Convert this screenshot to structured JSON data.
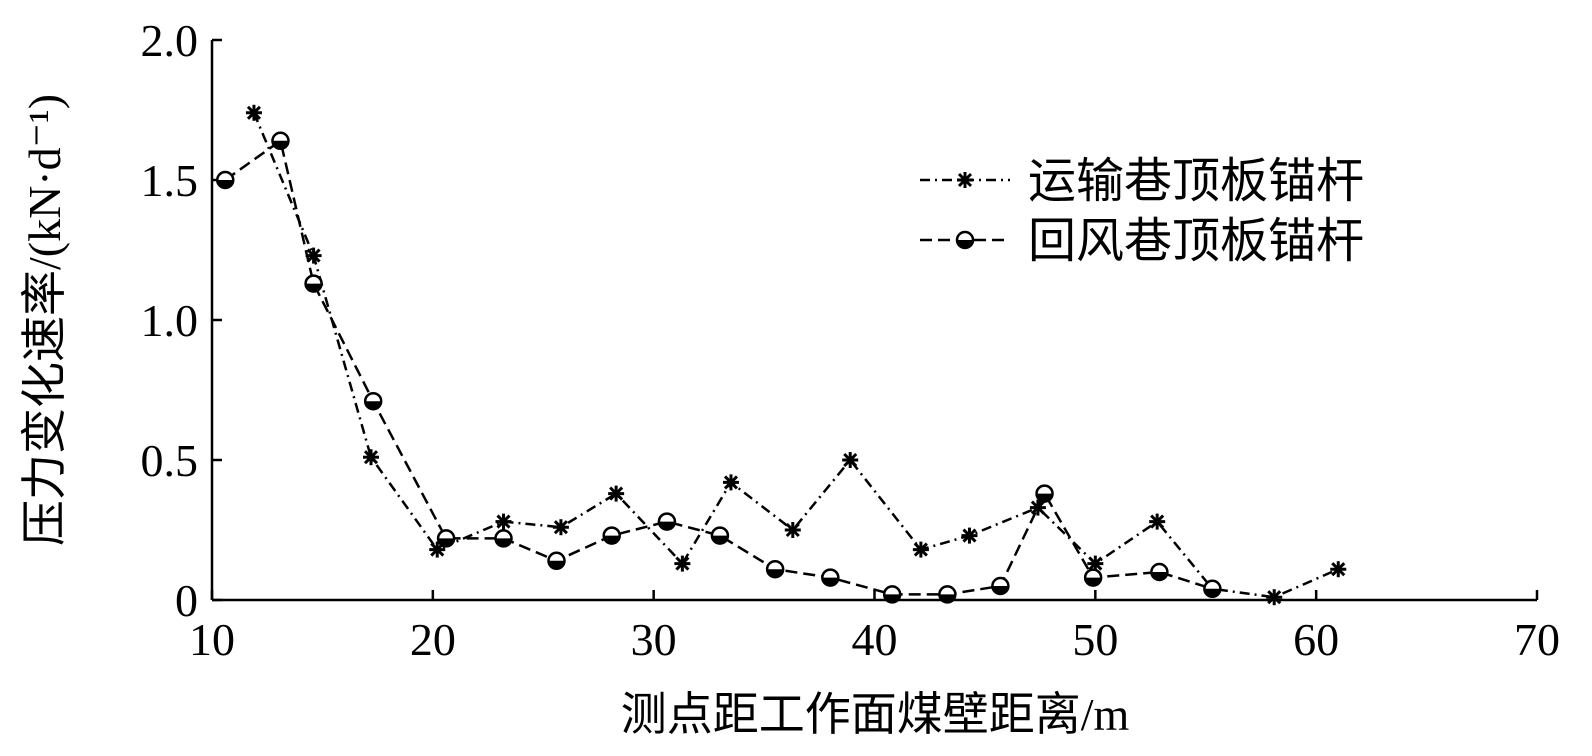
{
  "chart_data": {
    "type": "line",
    "xlabel": "测点距工作面煤壁距离/m",
    "ylabel": "压力变化速率/(kN·d⁻¹)",
    "xlim": [
      10,
      70
    ],
    "xticks": [
      10,
      20,
      30,
      40,
      50,
      60,
      70
    ],
    "ylim": [
      0,
      2
    ],
    "yticks": [
      0,
      0.5,
      {
        "value": 1,
        "label": "1.0"
      },
      1.5,
      {
        "value": 2,
        "label": "2.0"
      }
    ],
    "legend": "upper right",
    "series": [
      {
        "name": "运输巷顶板锚杆",
        "color": "#000000",
        "marker": "asterisk",
        "dash": "dashdot",
        "x": [
          11.9,
          14.6,
          17.2,
          20.2,
          23.2,
          25.8,
          28.3,
          31.3,
          33.5,
          36.3,
          38.9,
          42.1,
          44.3,
          47.4,
          50.0,
          52.8,
          55.3,
          58.1,
          61.0
        ],
        "values": [
          1.74,
          1.23,
          0.51,
          0.18,
          0.28,
          0.26,
          0.38,
          0.13,
          0.42,
          0.25,
          0.5,
          0.18,
          0.23,
          0.33,
          0.13,
          0.28,
          0.04,
          0.01,
          0.11
        ]
      },
      {
        "name": "回风巷顶板锚杆",
        "color": "#000000",
        "marker": "circle",
        "dash": "dashed",
        "x": [
          10.6,
          13.1,
          14.6,
          17.3,
          20.6,
          23.2,
          25.6,
          28.1,
          30.6,
          33.0,
          35.5,
          38.0,
          40.8,
          43.3,
          45.7,
          47.7,
          49.9,
          52.9,
          55.3
        ],
        "values": [
          1.5,
          1.64,
          1.13,
          0.71,
          0.22,
          0.22,
          0.14,
          0.23,
          0.28,
          0.23,
          0.11,
          0.08,
          0.02,
          0.02,
          0.05,
          0.38,
          0.08,
          0.1,
          0.04
        ]
      }
    ]
  }
}
